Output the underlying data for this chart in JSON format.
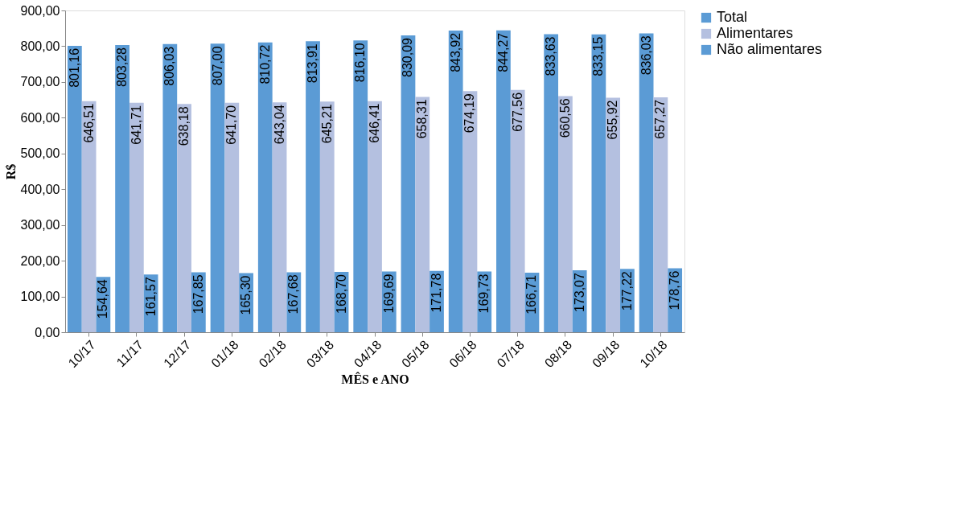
{
  "chart_data": {
    "type": "bar",
    "xlabel": "MÊS e ANO",
    "ylabel": "R$",
    "categories": [
      "10/17",
      "11/17",
      "12/17",
      "01/18",
      "02/18",
      "03/18",
      "04/18",
      "05/18",
      "06/18",
      "07/18",
      "08/18",
      "09/18",
      "10/18"
    ],
    "series": [
      {
        "name": "Total",
        "color": "#5b9bd5",
        "values": [
          801.16,
          803.28,
          806.03,
          807.0,
          810.72,
          813.91,
          816.1,
          830.09,
          843.92,
          844.27,
          833.63,
          833.15,
          836.03
        ],
        "value_labels": [
          "801,16",
          "803,28",
          "806,03",
          "807,00",
          "810,72",
          "813,91",
          "816,10",
          "830,09",
          "843,92",
          "844,27",
          "833,63",
          "833,15",
          "836,03"
        ]
      },
      {
        "name": "Alimentares",
        "color": "#b4c0e0",
        "values": [
          646.51,
          641.71,
          638.18,
          641.7,
          643.04,
          645.21,
          646.41,
          658.31,
          674.19,
          677.56,
          660.56,
          655.92,
          657.27
        ],
        "value_labels": [
          "646,51",
          "641,71",
          "638,18",
          "641,70",
          "643,04",
          "645,21",
          "646,41",
          "658,31",
          "674,19",
          "677,56",
          "660,56",
          "655,92",
          "657,27"
        ]
      },
      {
        "name": "Não alimentares",
        "color": "#5b9bd5",
        "values": [
          154.64,
          161.57,
          167.85,
          165.3,
          167.68,
          168.7,
          169.69,
          171.78,
          169.73,
          166.71,
          173.07,
          177.22,
          178.76
        ],
        "value_labels": [
          "154,64",
          "161,57",
          "167,85",
          "165,30",
          "167,68",
          "168,70",
          "169,69",
          "171,78",
          "169,73",
          "166,71",
          "173,07",
          "177,22",
          "178,76"
        ]
      }
    ],
    "ylim": [
      0,
      900
    ],
    "yticks": [
      {
        "value": 0,
        "label": "0,00"
      },
      {
        "value": 100,
        "label": "100,00"
      },
      {
        "value": 200,
        "label": "200,00"
      },
      {
        "value": 300,
        "label": "300,00"
      },
      {
        "value": 400,
        "label": "400,00"
      },
      {
        "value": 500,
        "label": "500,00"
      },
      {
        "value": 600,
        "label": "600,00"
      },
      {
        "value": 700,
        "label": "700,00"
      },
      {
        "value": 800,
        "label": "800,00"
      },
      {
        "value": 900,
        "label": "900,00"
      }
    ],
    "legend": "right",
    "grid": false
  }
}
